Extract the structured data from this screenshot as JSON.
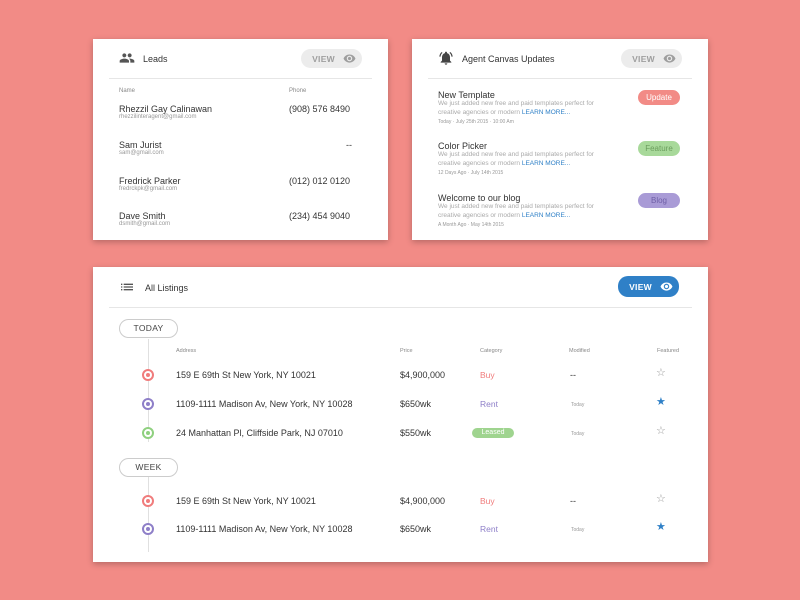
{
  "leads": {
    "title": "Leads",
    "view_label": "VIEW",
    "col_name": "Name",
    "col_phone": "Phone",
    "rows": [
      {
        "name": "Rhezzil Gay Calinawan",
        "email": "rhezzilinteragent@gmail.com",
        "phone": "(908) 576 8490"
      },
      {
        "name": "Sam Jurist",
        "email": "sam@gmail.com",
        "phone": "--"
      },
      {
        "name": "Fredrick Parker",
        "email": "fredrckpk@gmail.com",
        "phone": "(012) 012 0120"
      },
      {
        "name": "Dave Smith",
        "email": "dsmith@gmail.com",
        "phone": "(234) 454 9040"
      }
    ]
  },
  "updates": {
    "title": "Agent Canvas Updates",
    "view_label": "VIEW",
    "items": [
      {
        "title": "New Template",
        "desc": "We just added new free and paid templates perfect for creative agencies or modern",
        "learn_more": "LEARN MORE...",
        "date": "Today · July 25th 2015 · 10:00 Am",
        "tag": "Update",
        "tag_bg": "#f28b86",
        "tag_fg": "#ffffff"
      },
      {
        "title": "Color Picker",
        "desc": "We just added new free and paid templates perfect for creative agencies or modern",
        "learn_more": "LEARN MORE...",
        "date": "12 Days Ago · July 14th 2015",
        "tag": "Feature",
        "tag_bg": "#a8d99a",
        "tag_fg": "#6b9e5d"
      },
      {
        "title": "Welcome to our blog",
        "desc": "We just added new free and paid templates perfect for creative agencies or modern",
        "learn_more": "LEARN MORE...",
        "date": "A Month Ago · May 14th 2015",
        "tag": "Blog",
        "tag_bg": "#a99bd6",
        "tag_fg": "#6f5fa6"
      }
    ]
  },
  "listings": {
    "title": "All Listings",
    "view_label": "VIEW",
    "columns": {
      "address": "Address",
      "price": "Price",
      "category": "Category",
      "modified": "Modified",
      "featured": "Featured"
    },
    "groups": [
      {
        "label": "TODAY",
        "rows": [
          {
            "address": "159 E 69th St New York, NY 10021",
            "price": "$4,900,000",
            "category": "Buy",
            "modified": "--",
            "featured": false,
            "dot": "#f07c7c"
          },
          {
            "address": "1109-1111 Madison Av, New York, NY 10028",
            "price": "$650wk",
            "category": "Rent",
            "modified": "Today",
            "featured": true,
            "dot": "#8e7fc8"
          },
          {
            "address": "24 Manhattan Pl, Cliffside Park, NJ 07010",
            "price": "$550wk",
            "category": "Leased",
            "modified": "Today",
            "featured": false,
            "dot": "#8fd07f"
          }
        ]
      },
      {
        "label": "WEEK",
        "rows": [
          {
            "address": "159 E 69th St New York, NY 10021",
            "price": "$4,900,000",
            "category": "Buy",
            "modified": "--",
            "featured": false,
            "dot": "#f07c7c"
          },
          {
            "address": "1109-1111 Madison Av, New York, NY 10028",
            "price": "$650wk",
            "category": "Rent",
            "modified": "Today",
            "featured": true,
            "dot": "#8e7fc8"
          }
        ]
      }
    ]
  },
  "icons": {
    "star_empty": "☆",
    "star_full": "★"
  },
  "colors": {
    "buy": "#f07c7c",
    "rent": "#8e7fc8",
    "accent": "#2f80c7"
  }
}
